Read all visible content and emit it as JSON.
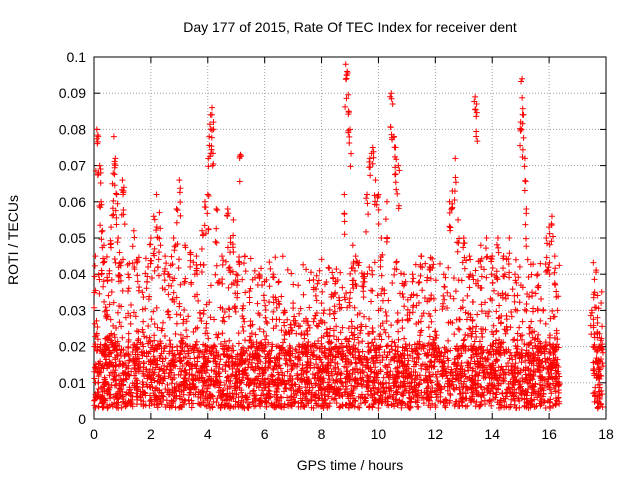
{
  "chart_data": {
    "type": "scatter",
    "title": "Day 177 of 2015, Rate Of TEC Index for receiver dent",
    "xlabel": "GPS time / hours",
    "ylabel": "ROTI / TECUs",
    "xlim": [
      0,
      18
    ],
    "ylim": [
      0,
      0.1
    ],
    "xticks": [
      0,
      2,
      4,
      6,
      8,
      10,
      12,
      14,
      16,
      18
    ],
    "xtick_labels": [
      "0",
      "2",
      "4",
      "6",
      "8",
      "10",
      "12",
      "14",
      "16",
      "18"
    ],
    "yticks": [
      0,
      0.01,
      0.02,
      0.03,
      0.04,
      0.05,
      0.06,
      0.07,
      0.08,
      0.09,
      0.1
    ],
    "ytick_labels": [
      "0",
      "0.01",
      "0.02",
      "0.03",
      "0.04",
      "0.05",
      "0.06",
      "0.07",
      "0.08",
      "0.09",
      "0.1"
    ],
    "grid": true,
    "marker": "+",
    "marker_color": "#ff0000",
    "series": [
      {
        "points": [
          [
            0.05,
            0.045
          ],
          [
            0.1,
            0.08
          ],
          [
            0.15,
            0.078
          ],
          [
            0.2,
            0.07
          ],
          [
            0.25,
            0.06
          ],
          [
            0.3,
            0.052
          ],
          [
            0.35,
            0.048
          ],
          [
            0.45,
            0.03
          ],
          [
            0.6,
            0.053
          ],
          [
            0.65,
            0.065
          ],
          [
            0.7,
            0.078
          ],
          [
            0.75,
            0.072
          ],
          [
            0.8,
            0.062
          ],
          [
            0.85,
            0.05
          ],
          [
            0.9,
            0.046
          ],
          [
            1.0,
            0.066
          ],
          [
            1.05,
            0.064
          ],
          [
            1.2,
            0.04
          ],
          [
            1.4,
            0.052
          ],
          [
            1.5,
            0.044
          ],
          [
            1.7,
            0.035
          ],
          [
            1.9,
            0.042
          ],
          [
            2.0,
            0.05
          ],
          [
            2.1,
            0.056
          ],
          [
            2.2,
            0.062
          ],
          [
            2.3,
            0.057
          ],
          [
            2.5,
            0.045
          ],
          [
            2.6,
            0.04
          ],
          [
            2.8,
            0.05
          ],
          [
            2.9,
            0.058
          ],
          [
            3.0,
            0.066
          ],
          [
            3.2,
            0.048
          ],
          [
            3.4,
            0.046
          ],
          [
            3.6,
            0.045
          ],
          [
            3.8,
            0.052
          ],
          [
            3.9,
            0.06
          ],
          [
            4.0,
            0.062
          ],
          [
            4.05,
            0.078
          ],
          [
            4.1,
            0.084
          ],
          [
            4.15,
            0.086
          ],
          [
            4.2,
            0.082
          ],
          [
            4.3,
            0.058
          ],
          [
            4.5,
            0.045
          ],
          [
            4.7,
            0.058
          ],
          [
            4.8,
            0.05
          ],
          [
            4.9,
            0.055
          ],
          [
            5.0,
            0.04
          ],
          [
            5.15,
            0.073
          ],
          [
            5.3,
            0.045
          ],
          [
            5.5,
            0.036
          ],
          [
            5.8,
            0.04
          ],
          [
            6.0,
            0.038
          ],
          [
            6.3,
            0.04
          ],
          [
            6.5,
            0.038
          ],
          [
            6.7,
            0.03
          ],
          [
            7.0,
            0.032
          ],
          [
            7.5,
            0.027
          ],
          [
            7.8,
            0.034
          ],
          [
            8.0,
            0.032
          ],
          [
            8.3,
            0.025
          ],
          [
            8.5,
            0.038
          ],
          [
            8.8,
            0.062
          ],
          [
            8.85,
            0.098
          ],
          [
            8.9,
            0.096
          ],
          [
            8.95,
            0.085
          ],
          [
            9.0,
            0.08
          ],
          [
            9.1,
            0.048
          ],
          [
            9.2,
            0.045
          ],
          [
            9.5,
            0.04
          ],
          [
            9.6,
            0.062
          ],
          [
            9.7,
            0.072
          ],
          [
            9.8,
            0.075
          ],
          [
            9.9,
            0.066
          ],
          [
            10.0,
            0.062
          ],
          [
            10.1,
            0.05
          ],
          [
            10.3,
            0.06
          ],
          [
            10.45,
            0.09
          ],
          [
            10.5,
            0.087
          ],
          [
            10.55,
            0.078
          ],
          [
            10.6,
            0.075
          ],
          [
            10.7,
            0.07
          ],
          [
            10.9,
            0.04
          ],
          [
            11.2,
            0.04
          ],
          [
            11.5,
            0.045
          ],
          [
            11.8,
            0.042
          ],
          [
            12.0,
            0.03
          ],
          [
            12.3,
            0.04
          ],
          [
            12.5,
            0.06
          ],
          [
            12.6,
            0.063
          ],
          [
            12.7,
            0.072
          ],
          [
            12.8,
            0.055
          ],
          [
            13.0,
            0.05
          ],
          [
            13.2,
            0.045
          ],
          [
            13.4,
            0.089
          ],
          [
            13.45,
            0.087
          ],
          [
            13.6,
            0.048
          ],
          [
            13.8,
            0.05
          ],
          [
            14.0,
            0.045
          ],
          [
            14.2,
            0.05
          ],
          [
            14.4,
            0.045
          ],
          [
            14.6,
            0.05
          ],
          [
            14.8,
            0.04
          ],
          [
            15.0,
            0.082
          ],
          [
            15.05,
            0.094
          ],
          [
            15.1,
            0.084
          ],
          [
            15.15,
            0.072
          ],
          [
            15.2,
            0.058
          ],
          [
            15.4,
            0.035
          ],
          [
            15.6,
            0.04
          ],
          [
            15.9,
            0.05
          ],
          [
            16.0,
            0.053
          ],
          [
            16.1,
            0.056
          ],
          [
            16.2,
            0.045
          ],
          [
            16.3,
            0.03
          ],
          [
            17.5,
            0.03
          ],
          [
            17.6,
            0.035
          ],
          [
            17.7,
            0.028
          ],
          [
            17.75,
            0.02
          ],
          [
            17.8,
            0.012
          ],
          [
            17.7,
            0.005
          ]
        ]
      }
    ],
    "dense_band": {
      "segments": [
        {
          "x_start": 0.0,
          "x_end": 16.4
        },
        {
          "x_start": 17.55,
          "x_end": 17.9
        }
      ],
      "typical_range": [
        0.003,
        0.02
      ],
      "extended_range": [
        0.02,
        0.045
      ]
    }
  }
}
